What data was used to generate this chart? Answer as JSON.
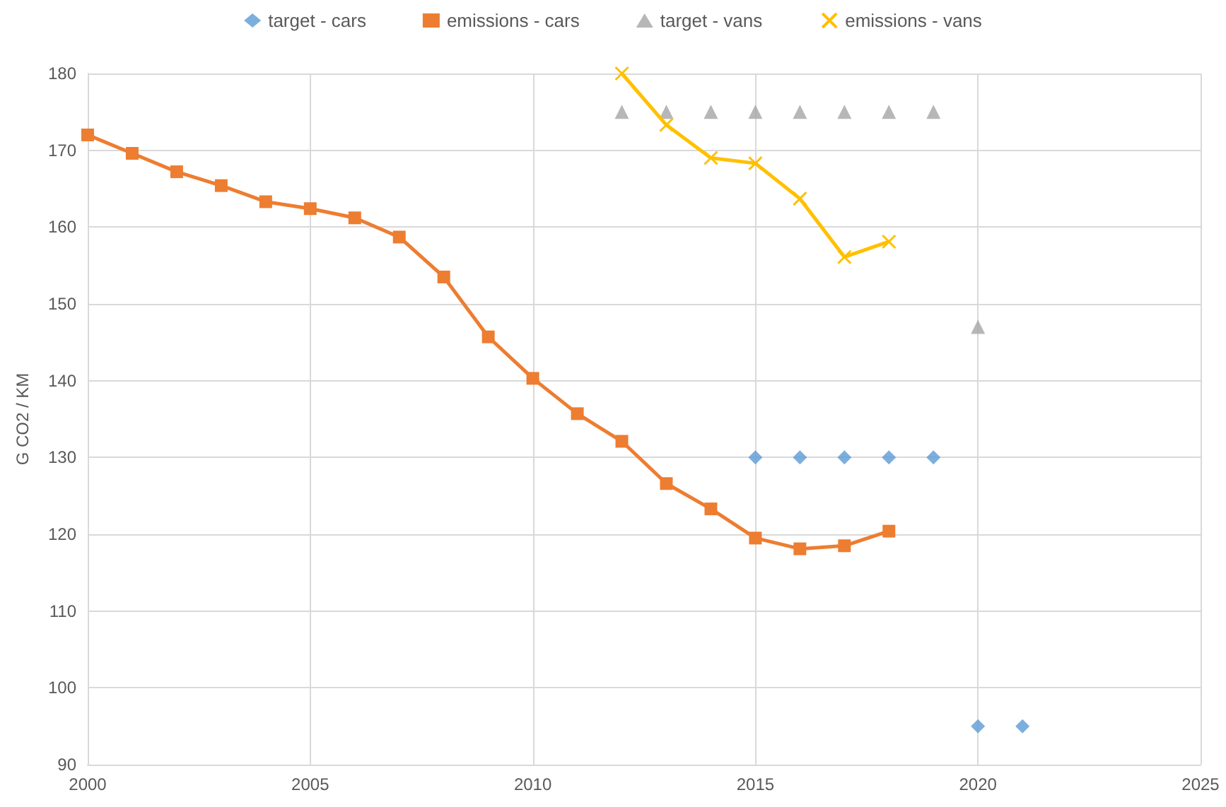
{
  "chart_data": {
    "type": "line",
    "ylabel": "G CO2 / KM",
    "xlim": [
      2000,
      2025
    ],
    "xticks": [
      2000,
      2005,
      2010,
      2015,
      2020,
      2025
    ],
    "ylim": [
      90,
      180
    ],
    "yticks": [
      90,
      100,
      110,
      120,
      130,
      140,
      150,
      160,
      170,
      180
    ],
    "grid": true,
    "legend": "top",
    "line_style": "solid",
    "series": [
      {
        "name": "target - cars",
        "type": "scatter",
        "marker": "diamond",
        "color": "#5b9bd5",
        "x": [
          2015,
          2016,
          2017,
          2018,
          2019,
          2020,
          2021
        ],
        "values": [
          130,
          130,
          130,
          130,
          130,
          95,
          95
        ]
      },
      {
        "name": "emissions - cars",
        "marker": "square",
        "color": "#ed7d31",
        "x": [
          2000,
          2001,
          2002,
          2003,
          2004,
          2005,
          2006,
          2007,
          2008,
          2009,
          2010,
          2011,
          2012,
          2013,
          2014,
          2015,
          2016,
          2017,
          2018
        ],
        "values": [
          172,
          169.6,
          167.2,
          165.4,
          163.3,
          162.4,
          161.2,
          158.7,
          153.5,
          145.7,
          140.3,
          135.7,
          132.1,
          126.6,
          123.3,
          119.5,
          118.1,
          118.5,
          120.4
        ]
      },
      {
        "name": "target - vans",
        "type": "scatter",
        "marker": "triangle",
        "color": "#a5a5a5",
        "x": [
          2012,
          2013,
          2014,
          2015,
          2016,
          2017,
          2018,
          2019,
          2020
        ],
        "values": [
          175,
          175,
          175,
          175,
          175,
          175,
          175,
          175,
          147
        ]
      },
      {
        "name": "emissions - vans",
        "marker": "cross",
        "color": "#ffc000",
        "x": [
          2012,
          2013,
          2014,
          2015,
          2016,
          2017,
          2018
        ],
        "values": [
          180,
          173.3,
          169,
          168.3,
          163.7,
          156.1,
          158.1
        ]
      }
    ]
  }
}
